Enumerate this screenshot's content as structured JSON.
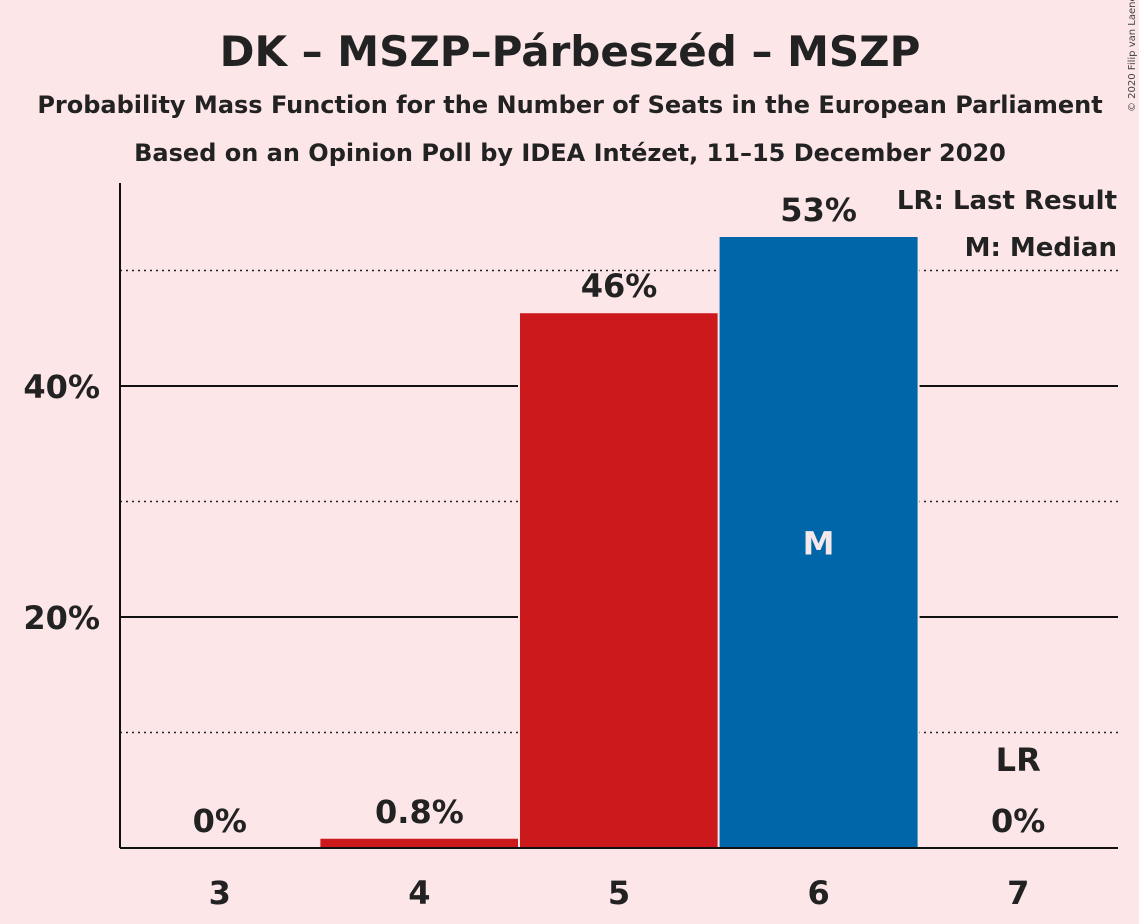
{
  "header": {
    "title": "DK – MSZP–Párbeszéd – MSZP",
    "subtitle1": "Probability Mass Function for the Number of Seats in the European Parliament",
    "subtitle2": "Based on an Opinion Poll by IDEA Intézet, 11–15 December 2020",
    "copyright": "© 2020 Filip van Laenen"
  },
  "legend": {
    "last_result": "LR: Last Result",
    "median": "M: Median"
  },
  "chart_data": {
    "type": "bar",
    "title": "DK – MSZP–Párbeszéd – MSZP",
    "categories": [
      "3",
      "4",
      "5",
      "6",
      "7"
    ],
    "values": [
      0,
      0.8,
      46.3,
      52.9,
      0
    ],
    "value_labels": [
      "0%",
      "0.8%",
      "46%",
      "53%",
      "0%"
    ],
    "bar_colors": [
      "#cc1a1c",
      "#cc1a1c",
      "#cc1a1c",
      "#0066aa",
      "#cc1a1c"
    ],
    "ylim": [
      0,
      57
    ],
    "yticks": [
      {
        "value": 20,
        "label": "20%"
      },
      {
        "value": 40,
        "label": "40%"
      }
    ],
    "minor_gridlines": [
      10,
      30,
      50
    ],
    "median_category": "6",
    "median_marker": "M",
    "last_result_category": "7",
    "last_result_marker": "LR",
    "legend_placement": "top-right",
    "grid": true
  }
}
